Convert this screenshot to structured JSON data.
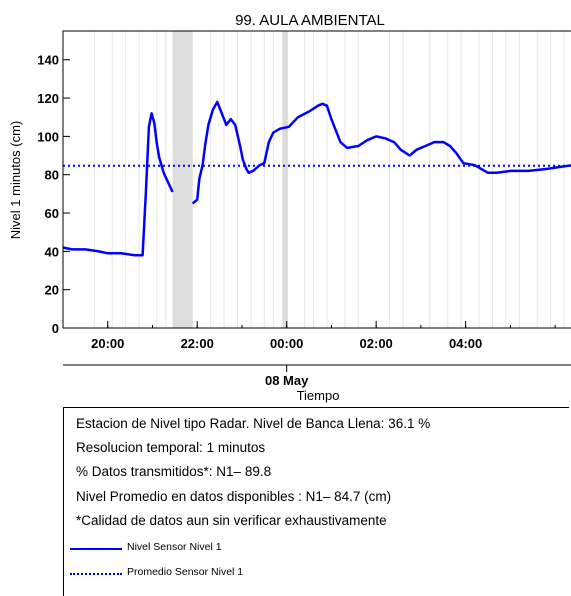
{
  "chart_data": {
    "type": "line",
    "title": "99. AULA AMBIENTAL",
    "ylabel": "Nivel 1 minutos (cm)",
    "xlabel": "Tiempo",
    "date_label": "08 May",
    "ylim": [
      0,
      155
    ],
    "xlim_hours": [
      -5.0,
      6.4
    ],
    "y_ticks": [
      0,
      20,
      40,
      60,
      80,
      100,
      120,
      140
    ],
    "x_ticks": [
      {
        "h": -4,
        "label": "20:00"
      },
      {
        "h": -2,
        "label": "22:00"
      },
      {
        "h": 0,
        "label": "00:00"
      },
      {
        "h": 2,
        "label": "02:00"
      },
      {
        "h": 4,
        "label": "04:00"
      }
    ],
    "date_tick_h": 0,
    "gaps": [
      [
        -2.55,
        -2.1
      ],
      [
        -0.1,
        0.03
      ]
    ],
    "series": [
      {
        "name": "Nivel Sensor Nivel 1",
        "color": "#0000ff",
        "style": "solid",
        "points": [
          [
            -5.0,
            42
          ],
          [
            -4.8,
            41
          ],
          [
            -4.5,
            41
          ],
          [
            -4.2,
            40
          ],
          [
            -4.0,
            39
          ],
          [
            -3.7,
            39
          ],
          [
            -3.4,
            38
          ],
          [
            -3.22,
            38
          ],
          [
            -3.15,
            70
          ],
          [
            -3.08,
            105
          ],
          [
            -3.02,
            112
          ],
          [
            -2.96,
            107
          ],
          [
            -2.9,
            96
          ],
          [
            -2.85,
            89
          ],
          [
            -2.75,
            81
          ],
          [
            -2.65,
            76
          ],
          [
            -2.55,
            71
          ],
          [
            -2.1,
            65
          ],
          [
            -2.0,
            67
          ],
          [
            -1.95,
            78
          ],
          [
            -1.88,
            85
          ],
          [
            -1.82,
            96
          ],
          [
            -1.75,
            106
          ],
          [
            -1.65,
            114
          ],
          [
            -1.55,
            118
          ],
          [
            -1.45,
            112
          ],
          [
            -1.35,
            106
          ],
          [
            -1.25,
            109
          ],
          [
            -1.15,
            106
          ],
          [
            -1.05,
            96
          ],
          [
            -0.98,
            88
          ],
          [
            -0.9,
            83
          ],
          [
            -0.85,
            81
          ],
          [
            -0.75,
            82
          ],
          [
            -0.6,
            85
          ],
          [
            -0.5,
            86
          ],
          [
            -0.4,
            97
          ],
          [
            -0.3,
            102
          ],
          [
            -0.15,
            104
          ],
          [
            0.05,
            105
          ],
          [
            0.25,
            110
          ],
          [
            0.5,
            113
          ],
          [
            0.7,
            116
          ],
          [
            0.8,
            117
          ],
          [
            0.9,
            116
          ],
          [
            1.0,
            109
          ],
          [
            1.1,
            103
          ],
          [
            1.2,
            97
          ],
          [
            1.35,
            94
          ],
          [
            1.6,
            95
          ],
          [
            1.8,
            98
          ],
          [
            2.0,
            100
          ],
          [
            2.2,
            99
          ],
          [
            2.4,
            97
          ],
          [
            2.55,
            93
          ],
          [
            2.75,
            90
          ],
          [
            2.9,
            93
          ],
          [
            3.1,
            95
          ],
          [
            3.3,
            97
          ],
          [
            3.5,
            97
          ],
          [
            3.65,
            95
          ],
          [
            3.8,
            91
          ],
          [
            3.95,
            86
          ],
          [
            4.2,
            85
          ],
          [
            4.35,
            83
          ],
          [
            4.5,
            81
          ],
          [
            4.7,
            81
          ],
          [
            5.0,
            82
          ],
          [
            5.4,
            82
          ],
          [
            5.8,
            83
          ],
          [
            6.1,
            84
          ],
          [
            6.4,
            85
          ]
        ]
      },
      {
        "name": "Promedio Sensor Nivel 1",
        "color": "#0000ff",
        "style": "dotted",
        "value": 84.7
      }
    ]
  },
  "info": {
    "line1": "Estacion de Nivel tipo Radar. Nivel de Banca Llena: 36.1 %",
    "line2": "Resolucion temporal: 1 minutos",
    "line3": "% Datos transmitidos*: N1– 89.8",
    "line4": "Nivel Promedio en datos disponibles : N1– 84.7 (cm)",
    "line5": "*Calidad de datos aun sin verificar exhaustivamente",
    "legend1": "Nivel Sensor Nivel 1",
    "legend2": "Promedio Sensor Nivel 1"
  }
}
